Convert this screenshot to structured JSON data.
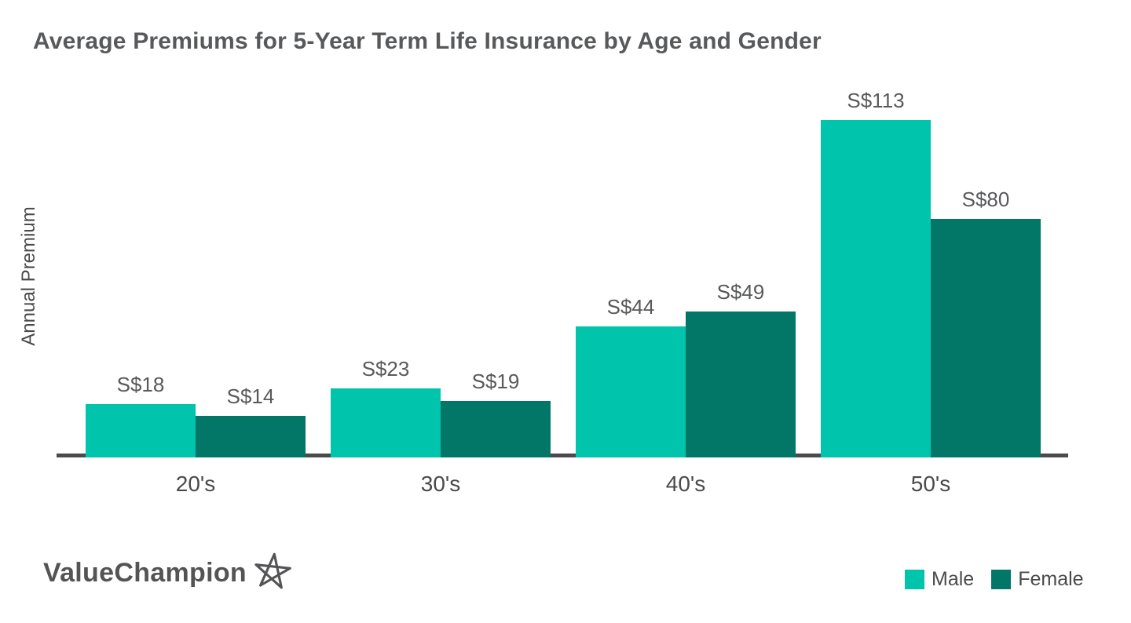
{
  "chart_data": {
    "type": "bar",
    "title": "Average Premiums for 5-Year Term Life Insurance by Age and Gender",
    "xlabel": "",
    "ylabel": "Annual Premium",
    "categories": [
      "20's",
      "30's",
      "40's",
      "50's"
    ],
    "series": [
      {
        "name": "Male",
        "color": "#00C4AC",
        "values": [
          18,
          23,
          44,
          113
        ],
        "labels": [
          "S$18",
          "S$23",
          "S$44",
          "S$113"
        ]
      },
      {
        "name": "Female",
        "color": "#027767",
        "values": [
          14,
          19,
          49,
          80
        ],
        "labels": [
          "S$14",
          "S$19",
          "S$49",
          "S$80"
        ]
      }
    ],
    "currency_prefix": "S$",
    "ylim": [
      0,
      113
    ],
    "grid": false,
    "y_axis_ticks_shown": false,
    "value_labels_shown": true,
    "legend_position": "bottom-right"
  },
  "footer": {
    "logo_text": "ValueChampion"
  },
  "colors": {
    "male_bar": "#00C4AC",
    "female_bar": "#027767",
    "axis_line": "#4B4B4D",
    "text": "#58595B",
    "background": "#FFFFFF"
  }
}
